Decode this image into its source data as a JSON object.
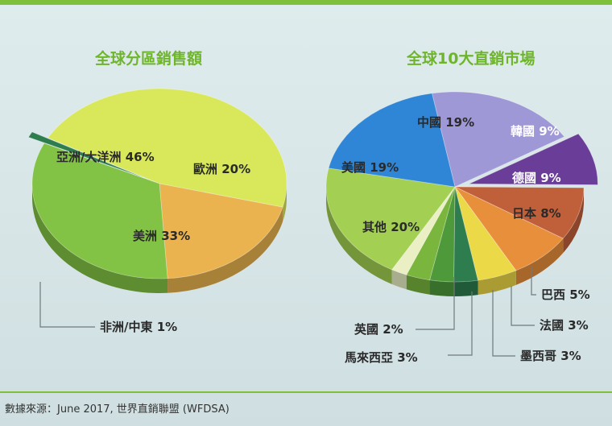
{
  "chart_data": [
    {
      "type": "pie",
      "title": "全球分區銷售額",
      "slices": [
        {
          "label": "亞洲/大洋洲 46%",
          "value": 46,
          "color": "#d8e85a"
        },
        {
          "label": "歐洲 20%",
          "value": 20,
          "color": "#eab34f"
        },
        {
          "label": "美洲 33%",
          "value": 33,
          "color": "#82c244"
        },
        {
          "label": "非洲/中東 1%",
          "value": 1,
          "color": "#2e7d4f"
        }
      ]
    },
    {
      "type": "pie",
      "title": "全球10大直銷市場",
      "slices": [
        {
          "label": "中國 19%",
          "value": 19,
          "color": "#9f98d6"
        },
        {
          "label": "韓國 9%",
          "value": 9,
          "color": "#6a3d99"
        },
        {
          "label": "德國 9%",
          "value": 9,
          "color": "#c0603a"
        },
        {
          "label": "日本 8%",
          "value": 8,
          "color": "#e88f3c"
        },
        {
          "label": "巴西 5%",
          "value": 5,
          "color": "#ecd947"
        },
        {
          "label": "法國 3%",
          "value": 3,
          "color": "#2e7d4f"
        },
        {
          "label": "墨西哥 3%",
          "value": 3,
          "color": "#4e9a3a"
        },
        {
          "label": "馬來西亞 3%",
          "value": 3,
          "color": "#7ab63e"
        },
        {
          "label": "英國 2%",
          "value": 2,
          "color": "#eaf0c4"
        },
        {
          "label": "其他 20%",
          "value": 20,
          "color": "#a3cf52"
        },
        {
          "label": "美國 19%",
          "value": 19,
          "color": "#2f86d6"
        }
      ]
    }
  ],
  "source": "數據來源：June 2017, 世界直銷聯盟 (WFDSA)"
}
